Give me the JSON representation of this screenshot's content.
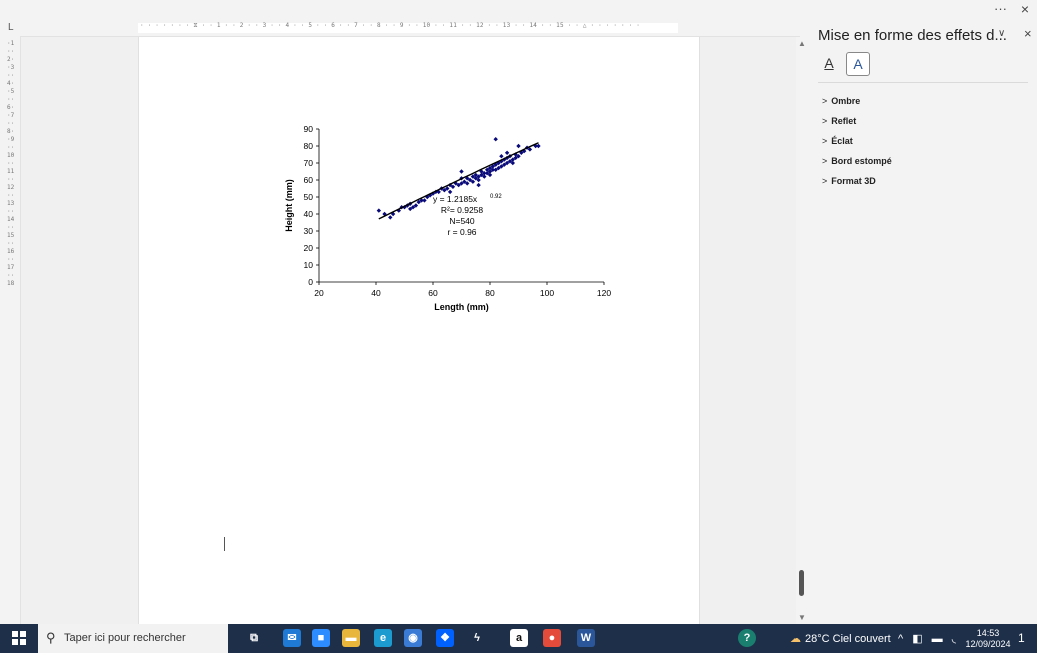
{
  "window": {
    "more_label": "···",
    "close_label": "×"
  },
  "ruler": {
    "corner": "L",
    "h_scale": "· · · · · · · ⧖ · · 1 · · 2 · · 3 · · 4 · · 5 · · 6 · · 7 · · 8 · · 9 · · 10 · · 11 · · 12 · · 13 · · 14 · · 15 · · △ · · · · · · ·",
    "v_scale": "·1··2··3··4··5··6··7··8··9··10··11··12··13··14··15··16··17··18"
  },
  "pane": {
    "title": "Mise en forme des effets d...",
    "dropdown_icon": "chevron-down-icon",
    "close_icon": "close-icon",
    "tabs": [
      {
        "name": "fill-line-tab",
        "glyph": "A"
      },
      {
        "name": "text-effects-tab",
        "glyph": "A"
      }
    ],
    "sections": [
      "Ombre",
      "Reflet",
      "Éclat",
      "Bord estompé",
      "Format 3D"
    ]
  },
  "chart_data": {
    "type": "scatter",
    "xlabel": "Length (mm)",
    "ylabel": "Height (mm)",
    "xlim": [
      20,
      120
    ],
    "ylim": [
      0,
      90
    ],
    "xticks": [
      20,
      40,
      60,
      80,
      100,
      120
    ],
    "yticks": [
      0,
      10,
      20,
      30,
      40,
      50,
      60,
      70,
      80,
      90
    ],
    "grid": false,
    "marker_color": "#0a0a7a",
    "trendline": {
      "model": "power",
      "a": 1.2185,
      "b": 0.92,
      "x_range": [
        41,
        97
      ]
    },
    "annotations": [
      "y = 1.2185x",
      "0.92",
      "R²= 0.9258",
      "N=540",
      "r = 0.96"
    ],
    "points": [
      [
        41,
        42
      ],
      [
        43,
        40
      ],
      [
        45,
        38
      ],
      [
        46,
        40
      ],
      [
        48,
        42
      ],
      [
        49,
        44
      ],
      [
        50,
        44
      ],
      [
        51,
        45
      ],
      [
        52,
        43
      ],
      [
        52,
        46
      ],
      [
        53,
        44
      ],
      [
        54,
        45
      ],
      [
        55,
        47
      ],
      [
        56,
        48
      ],
      [
        57,
        48
      ],
      [
        58,
        50
      ],
      [
        59,
        51
      ],
      [
        60,
        52
      ],
      [
        61,
        53
      ],
      [
        62,
        53
      ],
      [
        63,
        55
      ],
      [
        64,
        54
      ],
      [
        65,
        55
      ],
      [
        66,
        57
      ],
      [
        66,
        53
      ],
      [
        67,
        56
      ],
      [
        68,
        58
      ],
      [
        69,
        57
      ],
      [
        70,
        58
      ],
      [
        70,
        61
      ],
      [
        71,
        59
      ],
      [
        72,
        58
      ],
      [
        72,
        61
      ],
      [
        73,
        60
      ],
      [
        74,
        62
      ],
      [
        74,
        59
      ],
      [
        75,
        61
      ],
      [
        75,
        63
      ],
      [
        76,
        62
      ],
      [
        76,
        60
      ],
      [
        77,
        63
      ],
      [
        77,
        65
      ],
      [
        78,
        62
      ],
      [
        78,
        64
      ],
      [
        79,
        64
      ],
      [
        79,
        66
      ],
      [
        80,
        65
      ],
      [
        80,
        67
      ],
      [
        80,
        63
      ],
      [
        81,
        66
      ],
      [
        81,
        68
      ],
      [
        82,
        66
      ],
      [
        82,
        69
      ],
      [
        83,
        67
      ],
      [
        83,
        70
      ],
      [
        84,
        68
      ],
      [
        84,
        71
      ],
      [
        85,
        69
      ],
      [
        85,
        72
      ],
      [
        86,
        70
      ],
      [
        86,
        73
      ],
      [
        87,
        71
      ],
      [
        87,
        74
      ],
      [
        88,
        72
      ],
      [
        88,
        70
      ],
      [
        89,
        73
      ],
      [
        89,
        75
      ],
      [
        90,
        74
      ],
      [
        91,
        76
      ],
      [
        92,
        77
      ],
      [
        93,
        79
      ],
      [
        94,
        78
      ],
      [
        96,
        80
      ],
      [
        97,
        80
      ],
      [
        82,
        84
      ],
      [
        90,
        80
      ],
      [
        70,
        65
      ],
      [
        76,
        57
      ],
      [
        84,
        74
      ],
      [
        86,
        76
      ]
    ]
  },
  "taskbar": {
    "search_placeholder": "Taper ici pour rechercher",
    "apps": [
      {
        "name": "task-view-icon",
        "glyph": "⧉",
        "bg": "transparent"
      },
      {
        "name": "mail-icon",
        "glyph": "✉",
        "bg": "#1f7ad6"
      },
      {
        "name": "zoom-icon",
        "glyph": "■",
        "bg": "#2d8cff"
      },
      {
        "name": "file-explorer-icon",
        "glyph": "▬",
        "bg": "#e8b63a"
      },
      {
        "name": "edge-icon",
        "glyph": "e",
        "bg": "#1c9bd1"
      },
      {
        "name": "browser-icon",
        "glyph": "◉",
        "bg": "#3a7bd5"
      },
      {
        "name": "dropbox-icon",
        "glyph": "❖",
        "bg": "#0061fe"
      },
      {
        "name": "app-icon",
        "glyph": "ϟ",
        "bg": "transparent"
      },
      {
        "name": "amazon-icon",
        "glyph": "a",
        "bg": "#ffffff"
      },
      {
        "name": "chrome-icon",
        "glyph": "●",
        "bg": "#e44b3a"
      },
      {
        "name": "word-icon",
        "glyph": "W",
        "bg": "#2b579a"
      }
    ],
    "help_icon": "?",
    "weather": "28°C  Ciel couvert",
    "tray": "^ ◧ ▬ ◟",
    "time": "14:53",
    "date": "12/09/2024",
    "notifications": "1"
  }
}
